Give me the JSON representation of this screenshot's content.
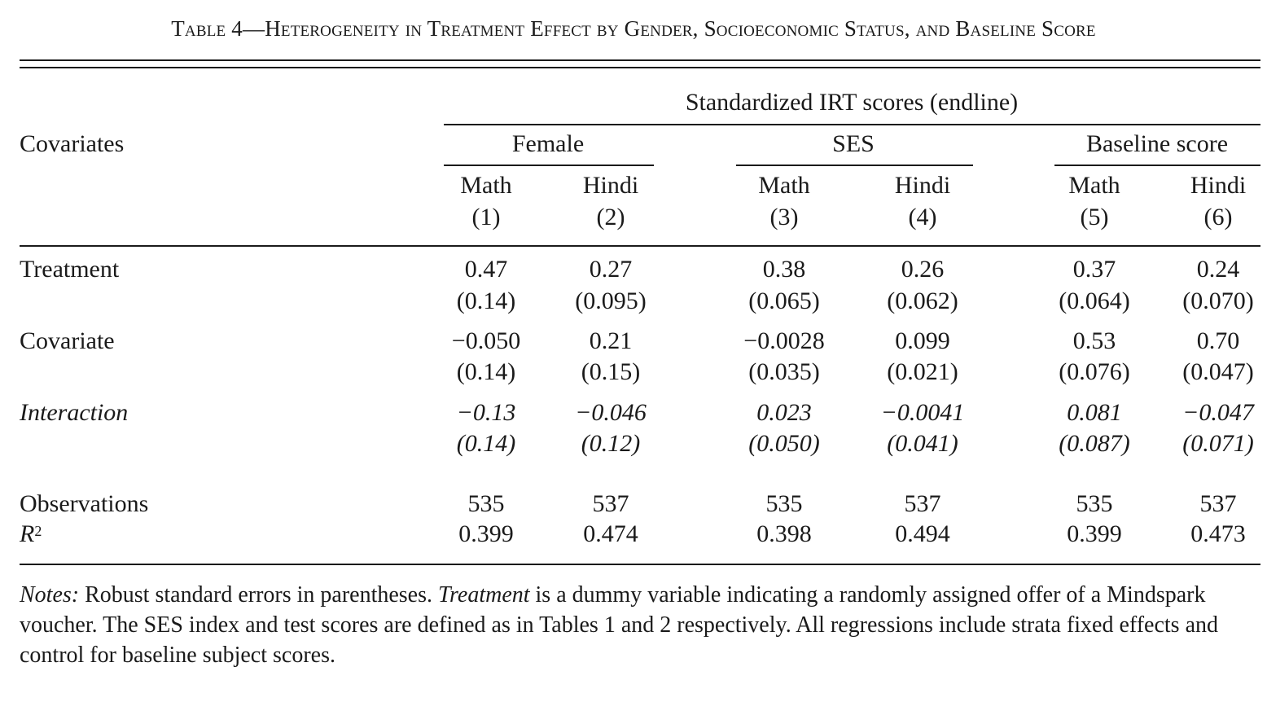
{
  "title": {
    "prefix": "Table 4",
    "dash": "—",
    "text": "Heterogeneity in Treatment Effect by Gender, Socioeconomic Status, and Baseline Score"
  },
  "header": {
    "covariates_label": "Covariates",
    "spanner": "Standardized IRT scores (endline)",
    "groups": [
      "Female",
      "SES",
      "Baseline score"
    ],
    "subjects": [
      "Math",
      "Hindi",
      "Math",
      "Hindi",
      "Math",
      "Hindi"
    ],
    "col_numbers": [
      "(1)",
      "(2)",
      "(3)",
      "(4)",
      "(5)",
      "(6)"
    ]
  },
  "rows": {
    "treatment": {
      "label": "Treatment",
      "coef": [
        "0.47",
        "0.27",
        "0.38",
        "0.26",
        "0.37",
        "0.24"
      ],
      "se": [
        "(0.14)",
        "(0.095)",
        "(0.065)",
        "(0.062)",
        "(0.064)",
        "(0.070)"
      ]
    },
    "covariate": {
      "label": "Covariate",
      "coef": [
        "−0.050",
        "0.21",
        "−0.0028",
        "0.099",
        "0.53",
        "0.70"
      ],
      "se": [
        "(0.14)",
        "(0.15)",
        "(0.035)",
        "(0.021)",
        "(0.076)",
        "(0.047)"
      ]
    },
    "interaction": {
      "label": "Interaction",
      "coef": [
        "−0.13",
        "−0.046",
        "0.023",
        "−0.0041",
        "0.081",
        "−0.047"
      ],
      "se": [
        "(0.14)",
        "(0.12)",
        "(0.050)",
        "(0.041)",
        "(0.087)",
        "(0.071)"
      ]
    },
    "observations": {
      "label": "Observations",
      "values": [
        "535",
        "537",
        "535",
        "537",
        "535",
        "537"
      ]
    },
    "r2": {
      "label": "R",
      "label_sup": "2",
      "values": [
        "0.399",
        "0.474",
        "0.398",
        "0.494",
        "0.399",
        "0.473"
      ]
    }
  },
  "notes": {
    "lead": "Notes:",
    "part1": " Robust standard errors in parentheses. ",
    "treatment_word": "Treatment",
    "part2": " is a dummy variable indicating a randomly assigned offer of a Mindspark voucher. The SES index and test scores are defined as in Tables 1 and 2 respectively. All regressions include strata fixed effects and control for baseline subject scores."
  }
}
